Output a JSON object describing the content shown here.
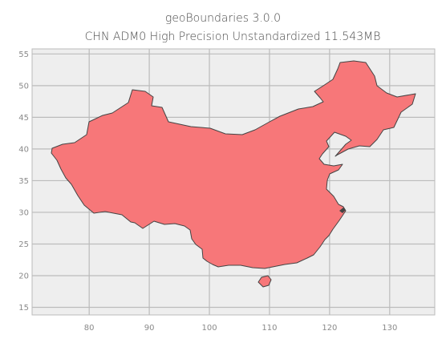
{
  "figure": {
    "title": "geoBoundaries 3.0.0",
    "subtitle": "CHN ADM0 High Precision Unstandardized 11.543MB"
  },
  "axes": {
    "x_ticks": [
      "80",
      "90",
      "100",
      "110",
      "120",
      "130"
    ],
    "y_ticks": [
      "55",
      "50",
      "45",
      "40",
      "35",
      "30",
      "25",
      "20",
      "15"
    ],
    "x_range": [
      70.5,
      137.5
    ],
    "y_range": [
      13.8,
      55.8
    ],
    "grid": true
  },
  "colors": {
    "plot_background": "#eeeeee",
    "grid": "#bbbbbb",
    "land_fill": "#f77779",
    "land_edge": "#444444"
  },
  "map": {
    "country_code": "CHN",
    "admin_level": "ADM0",
    "regions": [
      "mainland",
      "hainan"
    ]
  }
}
